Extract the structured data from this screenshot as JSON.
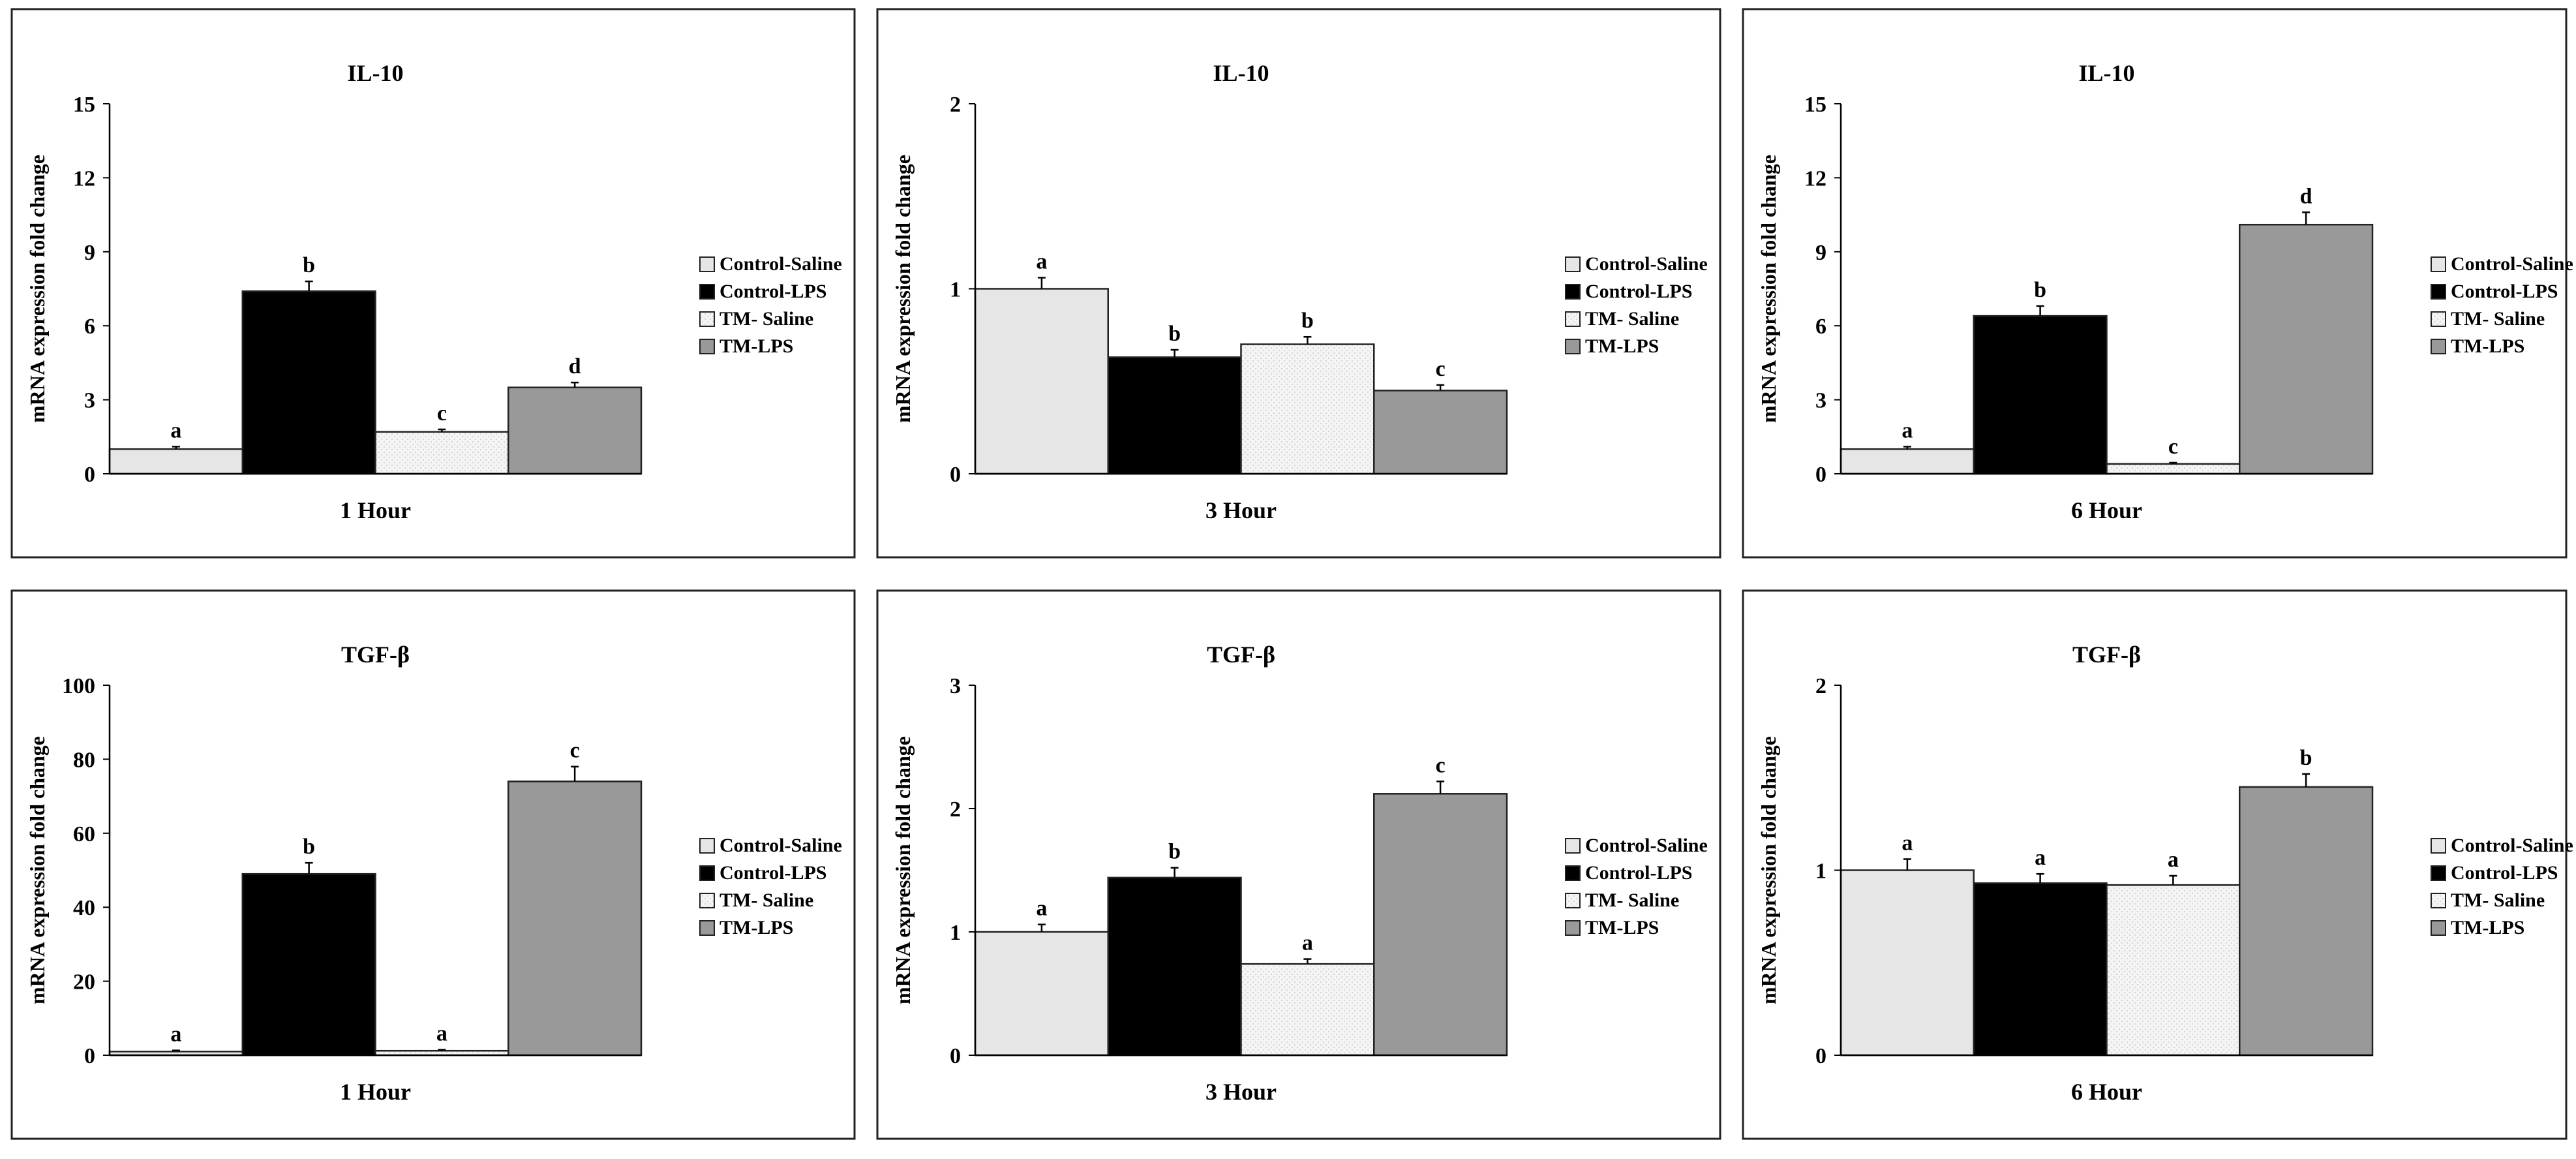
{
  "figure": {
    "legend_labels": [
      "Control-Saline",
      "Control-LPS",
      "TM- Saline",
      "TM-LPS"
    ],
    "series_colors": [
      "#e6e6e6",
      "#000000",
      "#f2f2f2",
      "#999999"
    ]
  },
  "chart_data": [
    {
      "type": "bar",
      "title": "IL-10",
      "xlabel": "1 Hour",
      "ylabel": "mRNA expression fold change",
      "ylim": [
        0,
        15
      ],
      "yticks": [
        "0",
        "3",
        "6",
        "9",
        "12",
        "15"
      ],
      "categories": [
        "Control-Saline",
        "Control-LPS",
        "TM- Saline",
        "TM-LPS"
      ],
      "values": [
        1.0,
        7.4,
        1.7,
        3.5
      ],
      "errors": [
        0.1,
        0.4,
        0.1,
        0.2
      ],
      "letters": [
        "a",
        "b",
        "c",
        "d"
      ],
      "legend": "right"
    },
    {
      "type": "bar",
      "title": "IL-10",
      "xlabel": "3 Hour",
      "ylabel": "mRNA expression fold change",
      "ylim": [
        0,
        2
      ],
      "yticks": [
        "0",
        "1",
        "2"
      ],
      "categories": [
        "Control-Saline",
        "Control-LPS",
        "TM- Saline",
        "TM-LPS"
      ],
      "values": [
        1.0,
        0.63,
        0.7,
        0.45
      ],
      "errors": [
        0.06,
        0.04,
        0.04,
        0.03
      ],
      "letters": [
        "a",
        "b",
        "b",
        "c"
      ],
      "legend": "right"
    },
    {
      "type": "bar",
      "title": "IL-10",
      "xlabel": "6 Hour",
      "ylabel": "mRNA expression fold change",
      "ylim": [
        0,
        15
      ],
      "yticks": [
        "0",
        "3",
        "6",
        "9",
        "12",
        "15"
      ],
      "categories": [
        "Control-Saline",
        "Control-LPS",
        "TM- Saline",
        "TM-LPS"
      ],
      "values": [
        1.0,
        6.4,
        0.4,
        10.1
      ],
      "errors": [
        0.1,
        0.4,
        0.05,
        0.5
      ],
      "letters": [
        "a",
        "b",
        "c",
        "d"
      ],
      "legend": "right"
    },
    {
      "type": "bar",
      "title": "TGF-β",
      "xlabel": "1 Hour",
      "ylabel": "mRNA expression fold change",
      "ylim": [
        0,
        100
      ],
      "yticks": [
        "0",
        "20",
        "40",
        "60",
        "80",
        "100"
      ],
      "categories": [
        "Control-Saline",
        "Control-LPS",
        "TM- Saline",
        "TM-LPS"
      ],
      "values": [
        1.0,
        49,
        1.2,
        74
      ],
      "errors": [
        0.3,
        3,
        0.3,
        4
      ],
      "letters": [
        "a",
        "b",
        "a",
        "c"
      ],
      "legend": "right"
    },
    {
      "type": "bar",
      "title": "TGF-β",
      "xlabel": "3 Hour",
      "ylabel": "mRNA expression fold change",
      "ylim": [
        0,
        3
      ],
      "yticks": [
        "0",
        "1",
        "2",
        "3"
      ],
      "categories": [
        "Control-Saline",
        "Control-LPS",
        "TM- Saline",
        "TM-LPS"
      ],
      "values": [
        1.0,
        1.44,
        0.74,
        2.12
      ],
      "errors": [
        0.06,
        0.08,
        0.04,
        0.1
      ],
      "letters": [
        "a",
        "b",
        "a",
        "c"
      ],
      "legend": "right"
    },
    {
      "type": "bar",
      "title": "TGF-β",
      "xlabel": "6 Hour",
      "ylabel": "mRNA expression fold change",
      "ylim": [
        0,
        2
      ],
      "yticks": [
        "0",
        "1",
        "2"
      ],
      "categories": [
        "Control-Saline",
        "Control-LPS",
        "TM- Saline",
        "TM-LPS"
      ],
      "values": [
        1.0,
        0.93,
        0.92,
        1.45
      ],
      "errors": [
        0.06,
        0.05,
        0.05,
        0.07
      ],
      "letters": [
        "a",
        "a",
        "a",
        "b"
      ],
      "legend": "right"
    }
  ]
}
